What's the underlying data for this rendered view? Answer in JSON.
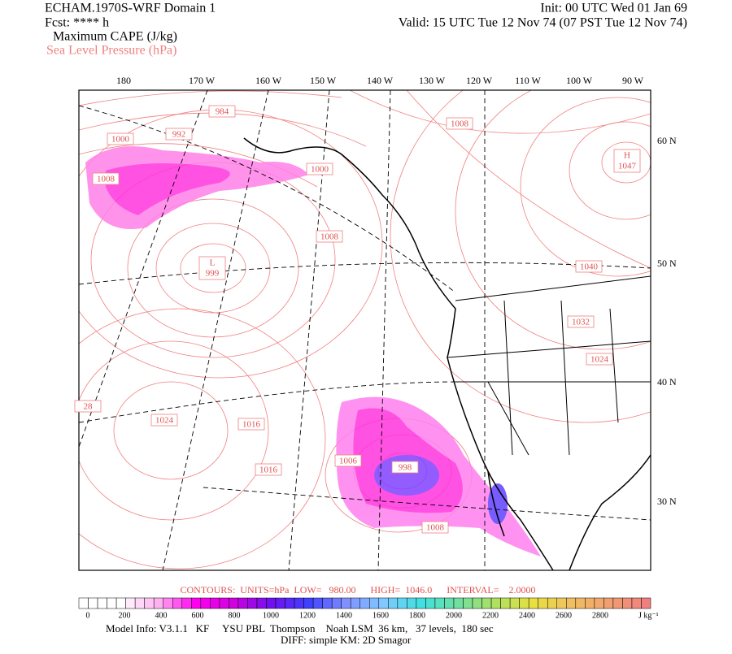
{
  "header": {
    "title": "ECHAM.1970S-WRF Domain 1",
    "forecast": "Fcst: **** h",
    "field": "Maximum CAPE (J/kg)",
    "overlay": "Sea Level Pressure (hPa)",
    "init": "Init: 00 UTC Wed 01 Jan 69",
    "valid": "Valid: 15 UTC Tue 12 Nov 74 (07 PST Tue 12 Nov 74)"
  },
  "map": {
    "longitude_labels": [
      "180",
      "170 W",
      "160 W",
      "150 W",
      "140 W",
      "130 W",
      "120 W",
      "110 W",
      "100 W",
      "90 W"
    ],
    "latitude_labels": [
      "60 N",
      "50 N",
      "40 N",
      "30 N"
    ],
    "pressure_labels": [
      984,
      992,
      1000,
      1008,
      1000,
      1008,
      1008,
      1040,
      1032,
      1024,
      28,
      1024,
      1016,
      1016,
      1006,
      998,
      1008
    ],
    "centers": [
      {
        "symbol": "L",
        "pressure": 999
      },
      {
        "symbol": "H",
        "pressure": 1047
      }
    ]
  },
  "contours_info": "CONTOURS:  UNITS=hPa  LOW=   980.00      HIGH=  1046.0      INTERVAL=    2.0000",
  "colorbar": {
    "ticks": [
      0,
      200,
      400,
      600,
      800,
      1000,
      1200,
      1400,
      1600,
      1800,
      2000,
      2200,
      2400,
      2600,
      2800
    ],
    "unit": "J kg⁻¹"
  },
  "footer": {
    "model_info": "Model Info: V3.1.1   KF     YSU PBL  Thompson    Noah LSM  36 km,   37 levels,  180 sec",
    "diff": "DIFF: simple KM: 2D Smagor"
  }
}
